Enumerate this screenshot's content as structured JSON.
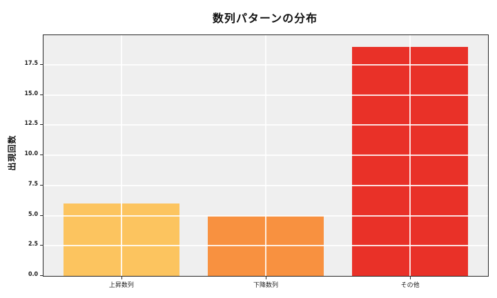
{
  "chart_data": {
    "type": "bar",
    "title": "数列パターンの分布",
    "xlabel": "",
    "ylabel": "出現回数",
    "categories": [
      "上昇数列",
      "下降数列",
      "その他"
    ],
    "values": [
      6,
      5,
      19
    ],
    "bar_colors": [
      "#FCC45F",
      "#F89140",
      "#E93128"
    ],
    "yticks": [
      "0.0",
      "2.5",
      "5.0",
      "7.5",
      "10.0",
      "12.5",
      "15.0",
      "17.5"
    ],
    "ylim": [
      0,
      19.95
    ],
    "xlim": [
      -0.54,
      2.54
    ],
    "bar_width": 0.8,
    "grid": "on",
    "grid_color": "#ffffff",
    "plot_background": "#efefef",
    "spine_color": "#262626",
    "figure_background": "#ffffff",
    "legend_position": "none"
  }
}
